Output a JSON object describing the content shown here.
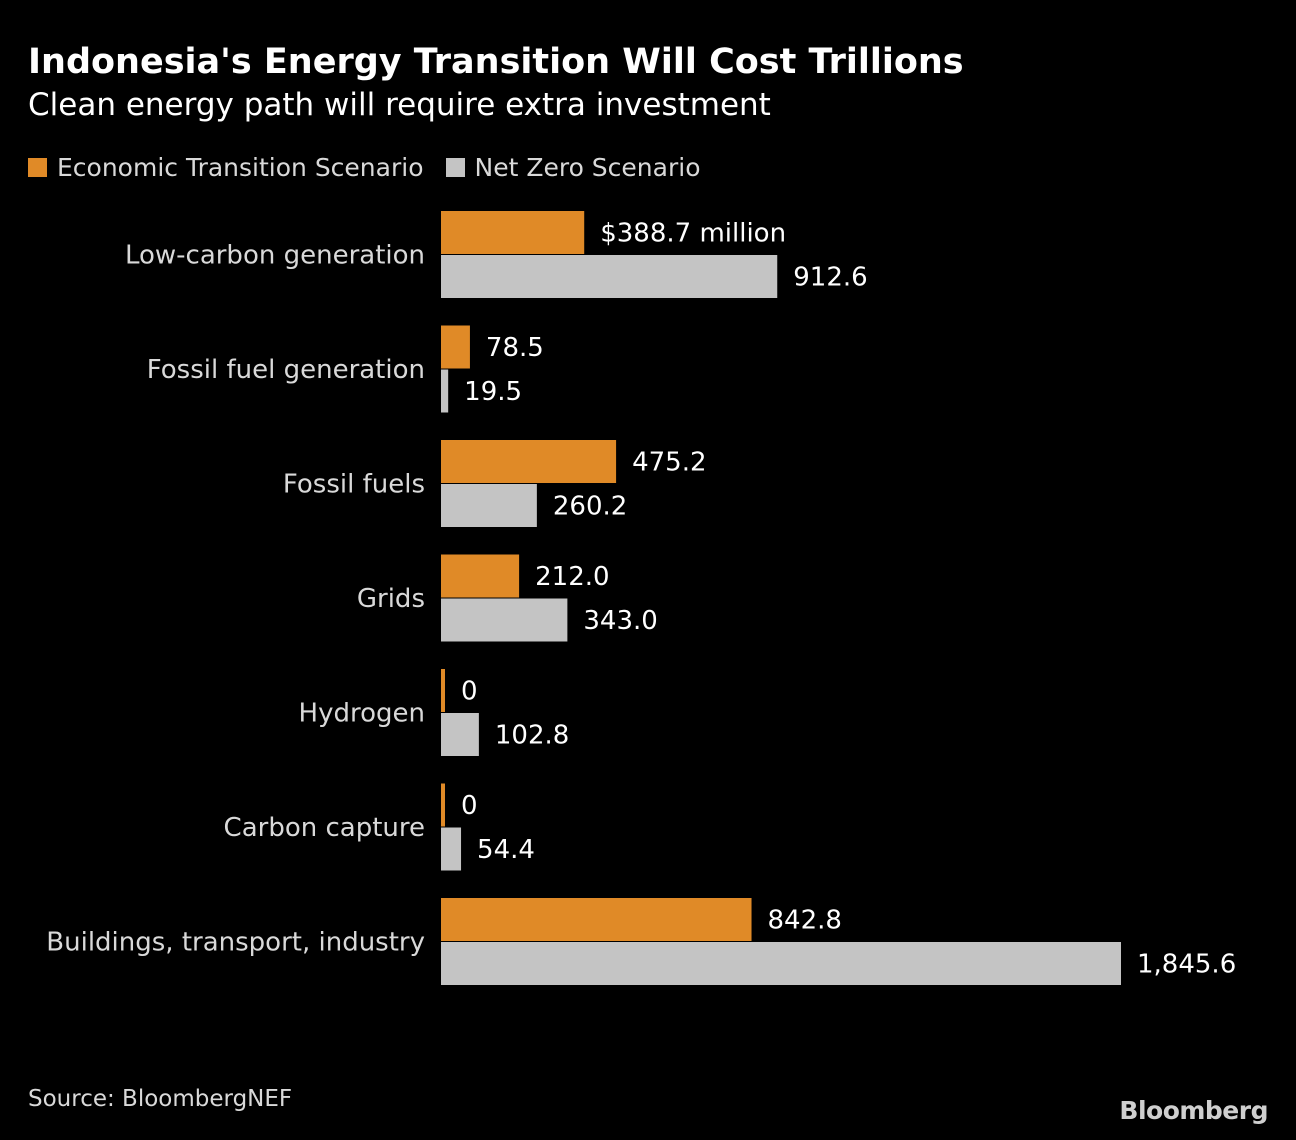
{
  "header": {
    "title": "Indonesia's Energy Transition Will Cost Trillions",
    "subtitle": "Clean energy path will require extra investment"
  },
  "legend": {
    "items": [
      {
        "label": "Economic Transition Scenario",
        "color": "#e08a27"
      },
      {
        "label": "Net Zero Scenario",
        "color": "#c4c4c4"
      }
    ]
  },
  "chart_data": {
    "type": "bar",
    "orientation": "horizontal",
    "title": "Indonesia's Energy Transition Will Cost Trillions",
    "subtitle": "Clean energy path will require extra investment",
    "categories": [
      "Low-carbon generation",
      "Fossil fuel generation",
      "Fossil fuels",
      "Grids",
      "Hydrogen",
      "Carbon capture",
      "Buildings, transport, industry"
    ],
    "series": [
      {
        "name": "Economic Transition Scenario",
        "color": "#e08a27",
        "values": [
          388.7,
          78.5,
          475.2,
          212.0,
          0,
          0,
          842.8
        ],
        "labels": [
          "$388.7 million",
          "78.5",
          "475.2",
          "212.0",
          "0",
          "0",
          "842.8"
        ]
      },
      {
        "name": "Net Zero Scenario",
        "color": "#c4c4c4",
        "values": [
          912.6,
          19.5,
          260.2,
          343.0,
          102.8,
          54.4,
          1845.6
        ],
        "labels": [
          "912.6",
          "19.5",
          "260.2",
          "343.0",
          "102.8",
          "54.4",
          "1,845.6"
        ]
      }
    ],
    "xlim": [
      0,
      1845.6
    ],
    "grid": false,
    "legend_position": "top-left"
  },
  "footer": {
    "source": "Source: BloombergNEF",
    "brand": "Bloomberg"
  }
}
